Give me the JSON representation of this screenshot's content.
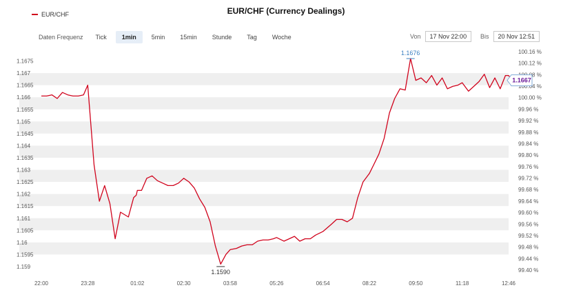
{
  "legend": {
    "series_name": "EUR/CHF",
    "color": "#d0021b"
  },
  "header": {
    "title": "EUR/CHF (Currency Dealings)"
  },
  "frequency": {
    "label": "Daten Frequenz",
    "options": [
      "Tick",
      "1min",
      "5min",
      "15min",
      "Stunde",
      "Tag",
      "Woche"
    ],
    "selected": "1min"
  },
  "date_range": {
    "from_label": "Von",
    "from_value": "17 Nov 22:00",
    "to_label": "Bis",
    "to_value": "20 Nov 12:51"
  },
  "chart_data": {
    "type": "line",
    "title": "EUR/CHF (Currency Dealings)",
    "series": [
      {
        "name": "EUR/CHF",
        "color": "#d0021b",
        "x": [
          "22:00",
          "22:10",
          "22:20",
          "22:30",
          "22:40",
          "22:50",
          "23:00",
          "23:10",
          "23:20",
          "23:28",
          "23:40",
          "23:50",
          "00:00",
          "00:10",
          "00:20",
          "00:30",
          "00:45",
          "00:55",
          "01:00",
          "01:02",
          "01:10",
          "01:20",
          "01:30",
          "01:40",
          "01:50",
          "02:00",
          "02:10",
          "02:20",
          "02:30",
          "02:40",
          "02:50",
          "03:00",
          "03:10",
          "03:20",
          "03:30",
          "03:40",
          "03:50",
          "03:58",
          "04:10",
          "04:20",
          "04:30",
          "04:40",
          "04:50",
          "05:00",
          "05:10",
          "05:20",
          "05:26",
          "05:40",
          "05:50",
          "06:00",
          "06:10",
          "06:20",
          "06:30",
          "06:40",
          "06:54",
          "07:10",
          "07:20",
          "07:30",
          "07:40",
          "07:50",
          "08:00",
          "08:10",
          "08:22",
          "08:30",
          "08:40",
          "08:50",
          "09:00",
          "09:10",
          "09:20",
          "09:30",
          "09:40",
          "09:50",
          "10:00",
          "10:10",
          "10:20",
          "10:30",
          "10:40",
          "10:50",
          "11:00",
          "11:10",
          "11:18",
          "11:30",
          "11:40",
          "11:50",
          "12:00",
          "12:10",
          "12:20",
          "12:30",
          "12:40",
          "12:46",
          "12:51"
        ],
        "values": [
          1.16605,
          1.16605,
          1.1661,
          1.16595,
          1.1662,
          1.1661,
          1.16605,
          1.16605,
          1.1661,
          1.1665,
          1.1632,
          1.1617,
          1.16235,
          1.1616,
          1.16015,
          1.16125,
          1.16105,
          1.16185,
          1.16195,
          1.16215,
          1.16215,
          1.16265,
          1.16275,
          1.16255,
          1.16245,
          1.16235,
          1.16235,
          1.16245,
          1.16265,
          1.1625,
          1.16225,
          1.1618,
          1.16145,
          1.16085,
          1.15985,
          1.1591,
          1.1595,
          1.1597,
          1.15975,
          1.15985,
          1.1599,
          1.1599,
          1.16005,
          1.1601,
          1.1601,
          1.16015,
          1.1602,
          1.16005,
          1.16015,
          1.16025,
          1.16005,
          1.16015,
          1.16015,
          1.1603,
          1.16045,
          1.16075,
          1.16095,
          1.16095,
          1.16085,
          1.161,
          1.16185,
          1.1625,
          1.16285,
          1.1632,
          1.16365,
          1.1643,
          1.16535,
          1.16595,
          1.16635,
          1.1663,
          1.1676,
          1.1667,
          1.1668,
          1.1666,
          1.1669,
          1.1665,
          1.1668,
          1.16635,
          1.16645,
          1.1665,
          1.1666,
          1.16625,
          1.16645,
          1.16665,
          1.16695,
          1.1664,
          1.1668,
          1.16635,
          1.1669,
          1.1669,
          1.16675
        ]
      }
    ],
    "x_ticks": [
      "22:00",
      "23:28",
      "01:02",
      "02:30",
      "03:58",
      "05:26",
      "06:54",
      "08:22",
      "09:50",
      "11:18",
      "12:46"
    ],
    "y_ticks": [
      1.159,
      1.1595,
      1.16,
      1.1605,
      1.161,
      1.1615,
      1.162,
      1.1625,
      1.163,
      1.1635,
      1.164,
      1.1645,
      1.165,
      1.1655,
      1.166,
      1.1665,
      1.167,
      1.1675
    ],
    "y_ticks_labels": [
      "1.159",
      "1.1595",
      "1.16",
      "1.1605",
      "1.161",
      "1.1615",
      "1.162",
      "1.1625",
      "1.163",
      "1.1635",
      "1.164",
      "1.1645",
      "1.165",
      "1.1655",
      "1.166",
      "1.1665",
      "1.167",
      "1.1675"
    ],
    "ylim": [
      1.1588,
      1.1678
    ],
    "y2_ticks": [
      "99.40 %",
      "99.44 %",
      "99.48 %",
      "99.52 %",
      "99.56 %",
      "99.60 %",
      "99.64 %",
      "99.68 %",
      "99.72 %",
      "99.76 %",
      "99.80 %",
      "99.84 %",
      "99.88 %",
      "99.92 %",
      "99.96 %",
      "100.00 %",
      "100.04 %",
      "100.08 %",
      "100.12 %",
      "100.16 %"
    ],
    "y2_values": [
      99.4,
      99.44,
      99.48,
      99.52,
      99.56,
      99.6,
      99.64,
      99.68,
      99.72,
      99.76,
      99.8,
      99.84,
      99.88,
      99.92,
      99.96,
      100.0,
      100.04,
      100.08,
      100.12,
      100.16
    ],
    "annotations": {
      "max_label": "1.1676",
      "max_value": 1.1676,
      "min_label": "1.1590",
      "min_value": 1.159,
      "last_label": "1.1667",
      "last_value": 1.1667
    },
    "grid": "horizontal-bands",
    "legend_position": "top-left"
  }
}
